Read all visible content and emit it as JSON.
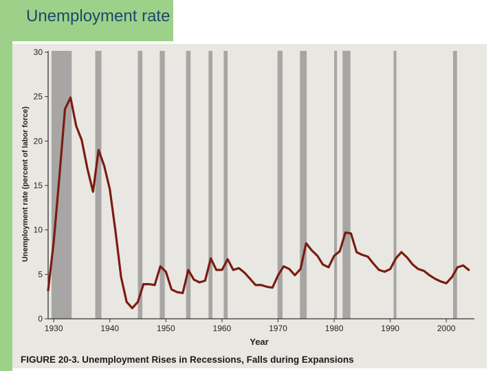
{
  "slide": {
    "title": "Unemployment rate"
  },
  "chart_data": {
    "type": "line",
    "title": "FIGURE 20-3. Unemployment Rises in Recessions, Falls during Expansions",
    "xlabel": "Year",
    "ylabel": "Unemployment rate (percent of labor force)",
    "xlim": [
      1929,
      2005
    ],
    "ylim": [
      0,
      30
    ],
    "xticks": [
      1930,
      1940,
      1950,
      1960,
      1970,
      1980,
      1990,
      2000
    ],
    "yticks": [
      0,
      5,
      10,
      15,
      20,
      25,
      30
    ],
    "xtick_labels": [
      "1930",
      "1940",
      "1950",
      "1960",
      "1970",
      "1980",
      "1990",
      "2000"
    ],
    "ytick_labels": [
      "0",
      "5",
      "10",
      "15",
      "20",
      "25",
      "30"
    ],
    "grid": false,
    "line_color": "#7a1c10",
    "recession_color": "#8e8e8e",
    "recessions": [
      [
        1929.6,
        1933.2
      ],
      [
        1937.4,
        1938.5
      ],
      [
        1945.0,
        1945.8
      ],
      [
        1948.9,
        1949.8
      ],
      [
        1953.6,
        1954.4
      ],
      [
        1957.6,
        1958.3
      ],
      [
        1960.3,
        1961.0
      ],
      [
        1969.9,
        1970.8
      ],
      [
        1973.9,
        1975.1
      ],
      [
        1980.0,
        1980.5
      ],
      [
        1981.5,
        1982.9
      ],
      [
        1990.6,
        1991.1
      ],
      [
        2001.2,
        2001.9
      ]
    ],
    "series": [
      {
        "x": [
          1929,
          1930,
          1931,
          1932,
          1933,
          1934,
          1935,
          1936,
          1937,
          1938,
          1939,
          1940,
          1941,
          1942,
          1943,
          1944,
          1945,
          1946,
          1947,
          1948,
          1949,
          1950,
          1951,
          1952,
          1953,
          1954,
          1955,
          1956,
          1957,
          1958,
          1959,
          1960,
          1961,
          1962,
          1963,
          1964,
          1965,
          1966,
          1967,
          1968,
          1969,
          1970,
          1971,
          1972,
          1973,
          1974,
          1975,
          1976,
          1977,
          1978,
          1979,
          1980,
          1981,
          1982,
          1983,
          1984,
          1985,
          1986,
          1987,
          1988,
          1989,
          1990,
          1991,
          1992,
          1993,
          1994,
          1995,
          1996,
          1997,
          1998,
          1999,
          2000,
          2001,
          2002,
          2003,
          2004
        ],
        "values": [
          3.2,
          8.7,
          15.9,
          23.6,
          24.9,
          21.7,
          20.1,
          16.9,
          14.3,
          19.0,
          17.2,
          14.6,
          9.9,
          4.7,
          1.9,
          1.2,
          1.9,
          3.9,
          3.9,
          3.8,
          5.9,
          5.3,
          3.3,
          3.0,
          2.9,
          5.5,
          4.4,
          4.1,
          4.3,
          6.8,
          5.5,
          5.5,
          6.7,
          5.5,
          5.7,
          5.2,
          4.5,
          3.8,
          3.8,
          3.6,
          3.5,
          4.9,
          5.9,
          5.6,
          4.9,
          5.6,
          8.5,
          7.7,
          7.1,
          6.1,
          5.8,
          7.1,
          7.6,
          9.7,
          9.6,
          7.5,
          7.2,
          7.0,
          6.2,
          5.5,
          5.3,
          5.6,
          6.8,
          7.5,
          6.9,
          6.1,
          5.6,
          5.4,
          4.9,
          4.5,
          4.2,
          4.0,
          4.7,
          5.8,
          6.0,
          5.5
        ]
      }
    ]
  }
}
